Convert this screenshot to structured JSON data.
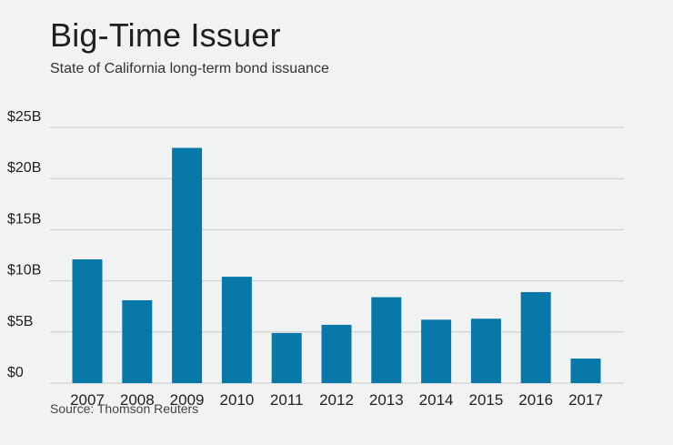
{
  "header": {
    "title": "Big-Time Issuer",
    "subtitle": "State of California long-term bond issuance"
  },
  "footer": {
    "source": "Source: Thomson Reuters"
  },
  "colors": {
    "bar": "#0878a8",
    "grid": "#c8cbcc",
    "background": "#f1f2f2"
  },
  "chart_data": {
    "type": "bar",
    "title": "Big-Time Issuer",
    "subtitle": "State of California long-term bond issuance",
    "xlabel": "",
    "ylabel": "",
    "categories": [
      "2007",
      "2008",
      "2009",
      "2010",
      "2011",
      "2012",
      "2013",
      "2014",
      "2015",
      "2016",
      "2017"
    ],
    "values": [
      12.1,
      8.1,
      23.0,
      10.4,
      4.9,
      5.7,
      8.4,
      6.2,
      6.3,
      8.9,
      2.4
    ],
    "unit": "billion USD",
    "ylim": [
      0,
      25
    ],
    "yticks": [
      0,
      5,
      10,
      15,
      20,
      25
    ],
    "ytick_labels": [
      "$0",
      "$5B",
      "$10B",
      "$15B",
      "$20B",
      "$25B"
    ],
    "grid": true,
    "legend": "none"
  }
}
